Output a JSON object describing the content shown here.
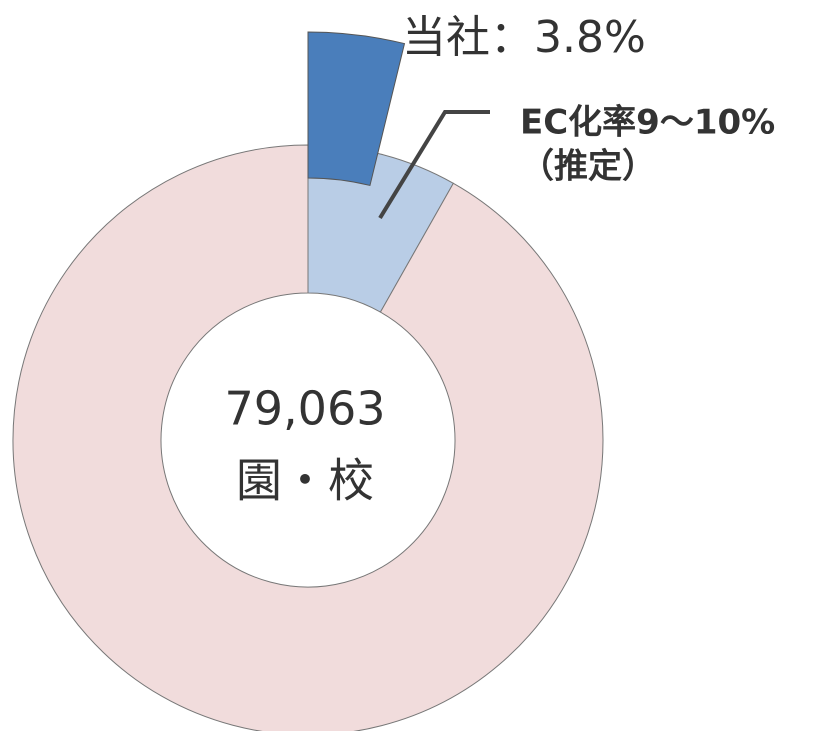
{
  "chart_data": {
    "type": "donut",
    "values": [
      8.2,
      91.8
    ],
    "colors": [
      "#b9cde6",
      "#f1dcdc"
    ],
    "highlight": {
      "value": 3.8,
      "value_label": "当社：3.8%",
      "color": "#4a7ebb"
    },
    "annotation": [
      "EC化率9～10%",
      "（推定）"
    ],
    "center_text": [
      "79,063",
      "園・校"
    ]
  }
}
